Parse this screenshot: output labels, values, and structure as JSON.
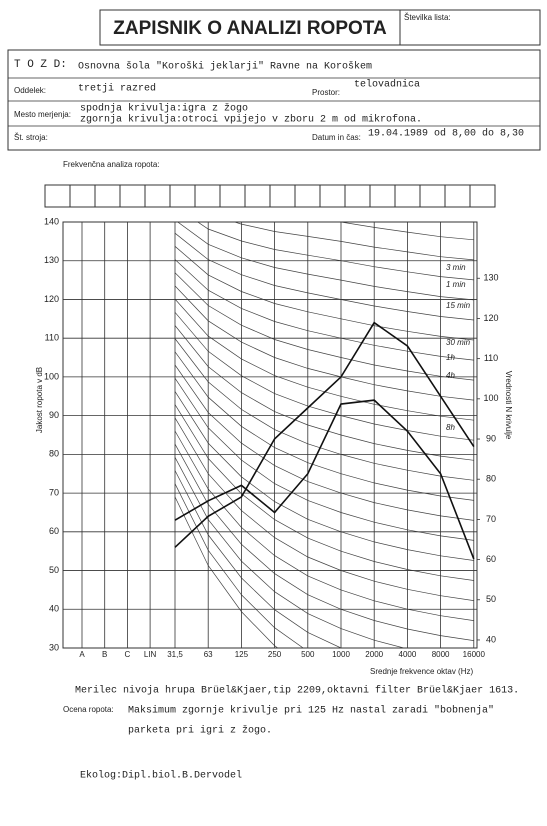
{
  "form": {
    "title": "ZAPISNIK O ANALIZI ROPOTA",
    "sheet_label": "Številka lista:",
    "tozd_label": "T O Z D:",
    "tozd": "Osnovna šola \"Koroški jeklarji\" Ravne na Koroškem",
    "department_label": "Oddelek:",
    "department": "tretji razred",
    "room_label": "Prostor:",
    "room": "telovadnica",
    "location_label": "Mesto merjenja:",
    "location": [
      "spodnja krivulja:igra z žogo",
      "zgornja krivulja:otroci vpijejo v zboru 2 m od mikrofona."
    ],
    "machine_label": "Št. stroja:",
    "datetime_label": "Datum in čas:",
    "datetime": "19.04.1989 od 8,00 do 8,30",
    "analysis_label": "Frekvenčna analiza ropota:"
  },
  "chart_data": {
    "type": "line",
    "ylabel": "Jakost ropota v dB",
    "y2label": "Vrednosti N krivulje",
    "xlabel": "Srednje frekvence oktav (Hz)",
    "categories": [
      "A",
      "B",
      "C",
      "LIN",
      "31,5",
      "63",
      "125",
      "250",
      "500",
      "1000",
      "2000",
      "4000",
      "8000",
      "16000"
    ],
    "series": [
      {
        "color": "#111",
        "values": [
          null,
          null,
          null,
          null,
          63,
          68,
          72,
          65,
          75,
          93,
          94,
          86,
          75,
          53
        ]
      },
      {
        "color": "#111",
        "values": [
          null,
          null,
          null,
          null,
          56,
          64,
          69,
          84,
          92,
          100,
          114,
          108,
          95,
          82
        ]
      }
    ],
    "ylim": [
      30,
      140
    ],
    "yticks": [
      30,
      40,
      50,
      60,
      70,
      80,
      90,
      100,
      110,
      120,
      130,
      140
    ],
    "y2lim": [
      38,
      144
    ],
    "y2ticks": [
      40,
      50,
      60,
      70,
      80,
      90,
      100,
      110,
      120,
      130
    ],
    "annotations": [
      "3 min",
      "1 min",
      "15 min",
      "30 min",
      "1h",
      "4h",
      "8h"
    ]
  },
  "footer": {
    "instrument": "Merilec nivoja hrupa Brüel&Kjaer,tip 2209,oktavni filter Brüel&Kjaer 1613.",
    "assessment_label": "Ocena ropota:",
    "assessment": [
      "Maksimum zgornje krivulje pri 125 Hz nastal zaradi \"bobnenja\"",
      "parketa pri igri z žogo."
    ],
    "author": "Ekolog:Dipl.biol.B.Dervodel"
  }
}
